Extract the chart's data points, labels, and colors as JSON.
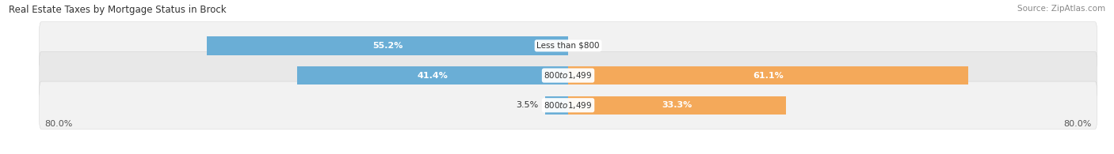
{
  "title": "Real Estate Taxes by Mortgage Status in Brock",
  "source": "Source: ZipAtlas.com",
  "rows": [
    {
      "label": "Less than $800",
      "without_mortgage": 55.2,
      "with_mortgage": 0.0
    },
    {
      "label": "$800 to $1,499",
      "without_mortgage": 41.4,
      "with_mortgage": 61.1
    },
    {
      "label": "$800 to $1,499",
      "without_mortgage": 3.5,
      "with_mortgage": 33.3
    }
  ],
  "x_left_label": "80.0%",
  "x_right_label": "80.0%",
  "axis_limit": 80.0,
  "color_without": "#6aaed6",
  "color_with": "#f4a95a",
  "bar_height": 0.62,
  "row_bg_light": "#f2f2f2",
  "row_bg_dark": "#e8e8e8",
  "title_fontsize": 8.5,
  "source_fontsize": 7.5,
  "label_fontsize": 8,
  "tick_fontsize": 8
}
